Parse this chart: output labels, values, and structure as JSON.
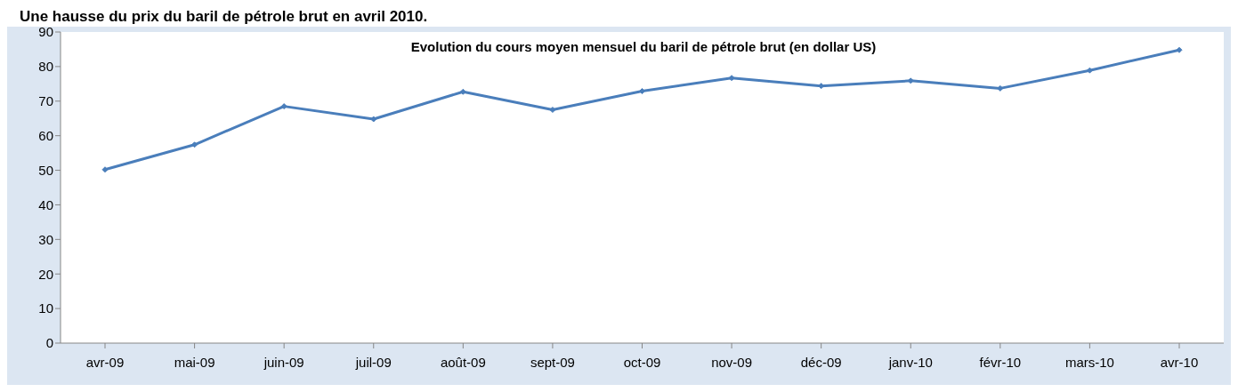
{
  "chart_data": {
    "type": "line",
    "title": "Une hausse du prix du baril de pétrole brut en avril 2010.",
    "subtitle": "Evolution du cours moyen mensuel du baril de pétrole brut (en dollar US)",
    "categories": [
      "avr-09",
      "mai-09",
      "juin-09",
      "juil-09",
      "août-09",
      "sept-09",
      "oct-09",
      "nov-09",
      "déc-09",
      "janv-10",
      "févr-10",
      "mars-10",
      "avr-10"
    ],
    "series": [
      {
        "color": "#4a7ebb",
        "values": [
          50.2,
          57.4,
          68.5,
          64.8,
          72.7,
          67.5,
          72.9,
          76.7,
          74.4,
          75.9,
          73.7,
          78.9,
          84.8
        ]
      }
    ],
    "ylim": [
      0,
      90
    ],
    "yticks": [
      0,
      10,
      20,
      30,
      40,
      50,
      60,
      70,
      80,
      90
    ],
    "grid": false,
    "legend": false,
    "marker": "diamond",
    "line_style": "solid"
  }
}
